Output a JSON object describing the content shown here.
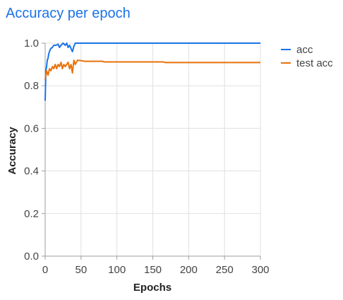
{
  "chart_data": {
    "type": "line",
    "title": "Accuracy per epoch",
    "xlabel": "Epochs",
    "ylabel": "Accuracy",
    "xlim": [
      0,
      300
    ],
    "ylim": [
      0,
      1.0
    ],
    "xticks": [
      0,
      50,
      100,
      150,
      200,
      250,
      300
    ],
    "yticks": [
      0.0,
      0.2,
      0.4,
      0.6,
      0.8,
      1.0
    ],
    "xtick_labels": [
      "0",
      "50",
      "100",
      "150",
      "200",
      "250",
      "300"
    ],
    "ytick_labels": [
      "0.0",
      "0.2",
      "0.4",
      "0.6",
      "0.8",
      "1.0"
    ],
    "grid": true,
    "legend_position": "top-right",
    "series": [
      {
        "name": "acc",
        "color": "#1a73e8",
        "points": [
          [
            0,
            0.73
          ],
          [
            1,
            0.87
          ],
          [
            2,
            0.89
          ],
          [
            3,
            0.92
          ],
          [
            4,
            0.93
          ],
          [
            5,
            0.95
          ],
          [
            6,
            0.96
          ],
          [
            7,
            0.97
          ],
          [
            8,
            0.975
          ],
          [
            10,
            0.98
          ],
          [
            12,
            0.99
          ],
          [
            15,
            0.99
          ],
          [
            18,
            0.995
          ],
          [
            20,
            0.98
          ],
          [
            22,
            0.99
          ],
          [
            25,
            1.0
          ],
          [
            28,
            0.99
          ],
          [
            30,
            1.0
          ],
          [
            32,
            0.98
          ],
          [
            34,
            0.99
          ],
          [
            36,
            0.975
          ],
          [
            38,
            0.96
          ],
          [
            40,
            0.985
          ],
          [
            42,
            1.0
          ],
          [
            45,
            1.0
          ],
          [
            50,
            1.0
          ],
          [
            100,
            1.0
          ],
          [
            150,
            1.0
          ],
          [
            200,
            1.0
          ],
          [
            250,
            1.0
          ],
          [
            300,
            1.0
          ]
        ]
      },
      {
        "name": "test acc",
        "color": "#e8710a",
        "points": [
          [
            0,
            0.83
          ],
          [
            2,
            0.87
          ],
          [
            4,
            0.85
          ],
          [
            6,
            0.88
          ],
          [
            8,
            0.87
          ],
          [
            10,
            0.89
          ],
          [
            12,
            0.88
          ],
          [
            14,
            0.9
          ],
          [
            16,
            0.88
          ],
          [
            18,
            0.9
          ],
          [
            20,
            0.89
          ],
          [
            22,
            0.91
          ],
          [
            24,
            0.88
          ],
          [
            26,
            0.9
          ],
          [
            28,
            0.89
          ],
          [
            30,
            0.9
          ],
          [
            32,
            0.91
          ],
          [
            34,
            0.88
          ],
          [
            36,
            0.9
          ],
          [
            38,
            0.86
          ],
          [
            40,
            0.92
          ],
          [
            42,
            0.9
          ],
          [
            45,
            0.92
          ],
          [
            50,
            0.918
          ],
          [
            55,
            0.915
          ],
          [
            80,
            0.915
          ],
          [
            82,
            0.912
          ],
          [
            165,
            0.912
          ],
          [
            167,
            0.909
          ],
          [
            200,
            0.909
          ],
          [
            250,
            0.909
          ],
          [
            300,
            0.909
          ]
        ]
      }
    ]
  }
}
